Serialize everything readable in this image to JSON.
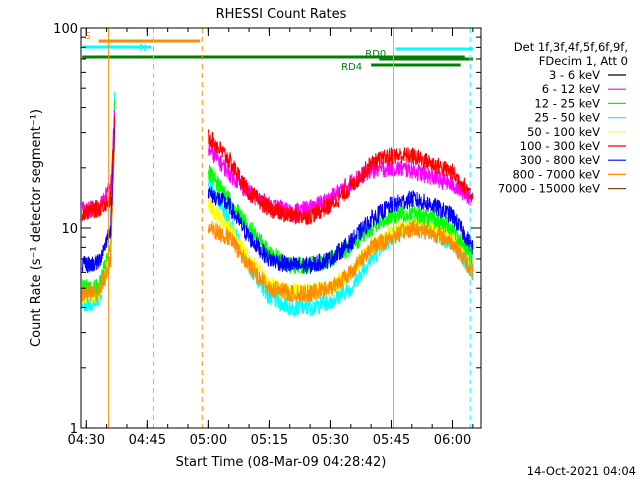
{
  "chart_data": {
    "type": "line",
    "title": "RHESSI Count Rates",
    "xlabel": "Start Time (08-Mar-09 04:28:42)",
    "ylabel": "Count Rate (s⁻¹ detector segment⁻¹)",
    "y_scale": "log",
    "ylim": [
      1,
      100
    ],
    "xlim": [
      "04:28:42",
      "06:07:00"
    ],
    "x_ticks": [
      "04:30",
      "04:45",
      "05:00",
      "05:15",
      "05:30",
      "05:45",
      "06:00"
    ],
    "y_ticks": [
      "1",
      "10",
      "100"
    ],
    "grid": false,
    "legend_position": "right",
    "legend_header": [
      "Det 1f,3f,4f,5f,6f,9f,",
      "FDecim 1, Att 0"
    ],
    "timestamp": "14-Oct-2021 04:04",
    "x": [
      "04:29",
      "04:33",
      "04:36",
      "04:37",
      "04:59",
      "05:00",
      "05:05",
      "05:10",
      "05:15",
      "05:20",
      "05:25",
      "05:30",
      "05:35",
      "05:40",
      "05:45",
      "05:50",
      "05:55",
      "06:00",
      "06:05"
    ],
    "series": [
      {
        "name": "3 - 6 keV",
        "color": "#000000",
        "values": [
          null,
          null,
          null,
          null,
          null,
          null,
          null,
          null,
          null,
          null,
          null,
          null,
          null,
          null,
          null,
          null,
          null,
          null,
          null
        ]
      },
      {
        "name": "6 - 12 keV",
        "color": "#ff00ff",
        "values": [
          12.5,
          12.5,
          16,
          38,
          null,
          25,
          19,
          15,
          13,
          12,
          12.5,
          14,
          17,
          19.5,
          20,
          19.5,
          18,
          16.5,
          14
        ]
      },
      {
        "name": "12 - 25 keV",
        "color": "#00ff00",
        "values": [
          5,
          5,
          8,
          48,
          null,
          19,
          14,
          10,
          7.5,
          6.5,
          6.5,
          7,
          8,
          10,
          11.5,
          12,
          11,
          10,
          7
        ]
      },
      {
        "name": "25 - 50 keV",
        "color": "#00ffff",
        "values": [
          4.2,
          4.3,
          7,
          50,
          null,
          17,
          11,
          6.5,
          4.5,
          4,
          4,
          4.3,
          5,
          7,
          9,
          10.5,
          9.5,
          8.5,
          6
        ]
      },
      {
        "name": "50 - 100 keV",
        "color": "#ffff00",
        "values": [
          4.6,
          4.6,
          7,
          30,
          null,
          13,
          10,
          7,
          5.2,
          4.8,
          4.8,
          5,
          6,
          8,
          9.5,
          10.5,
          10,
          9,
          6.5
        ]
      },
      {
        "name": "100 - 300 keV",
        "color": "#ff0000",
        "values": [
          12,
          12.5,
          14,
          35,
          null,
          29,
          22,
          15,
          12.5,
          11.5,
          11.5,
          13,
          16,
          21,
          23,
          23,
          21,
          19,
          14.5
        ]
      },
      {
        "name": "300 - 800 keV",
        "color": "#0000ff",
        "values": [
          6.5,
          6.7,
          10,
          35,
          null,
          15,
          13,
          9,
          7,
          6.5,
          6.5,
          7,
          8.5,
          11,
          13,
          14,
          13,
          11.5,
          8
        ]
      },
      {
        "name": "800 - 7000 keV",
        "color": "#ff8c00",
        "values": [
          4.7,
          4.8,
          7,
          30,
          null,
          10,
          9,
          6.5,
          5,
          4.7,
          4.7,
          5,
          6,
          8,
          9,
          10,
          9.5,
          8.5,
          6
        ]
      },
      {
        "name": "7000 - 15000 keV",
        "color": "#8b4513",
        "values": [
          null,
          null,
          null,
          null,
          null,
          null,
          null,
          null,
          null,
          null,
          null,
          null,
          null,
          null,
          null,
          null,
          null,
          null,
          null
        ]
      }
    ],
    "flag_bars": [
      {
        "label": "S",
        "color": "#ff8c00",
        "from": "04:33",
        "to": "04:58"
      },
      {
        "label": "N",
        "color": "#00ffff",
        "from": "04:29",
        "to": "04:46"
      },
      {
        "label": "",
        "color": "#008000",
        "from": "04:29",
        "to": "06:03"
      },
      {
        "label": "RD0",
        "color": "#008000",
        "from": "05:42",
        "to": "06:05"
      },
      {
        "label": "RD4",
        "color": "#008000",
        "from": "05:40",
        "to": "06:02"
      },
      {
        "label": "",
        "color": "#00ffff",
        "from": "05:46",
        "to": "06:05"
      }
    ],
    "vertical_lines": [
      {
        "color": "#00ffff",
        "style": "solid",
        "x": "04:28:42"
      },
      {
        "color": "#ff8c00",
        "style": "solid",
        "x": "04:35:30"
      },
      {
        "color": "#00ffff",
        "style": "dashed",
        "x": "04:46:30"
      },
      {
        "color": "#ff8c00",
        "style": "dashed",
        "x": "04:58:30"
      },
      {
        "color": "#00ffff",
        "style": "solid",
        "x": "05:45:30"
      },
      {
        "color": "#00ffff",
        "style": "dashed",
        "x": "06:04:20"
      }
    ]
  }
}
